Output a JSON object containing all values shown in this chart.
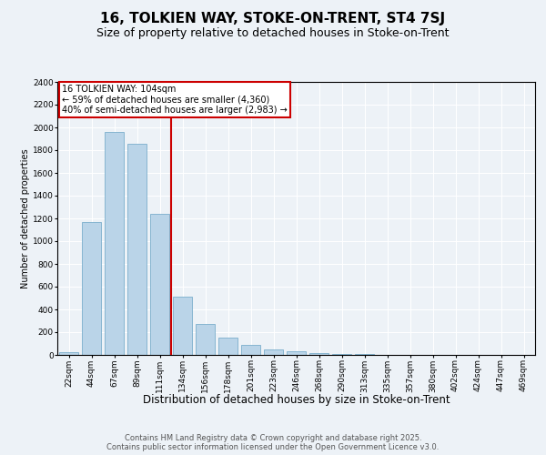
{
  "title": "16, TOLKIEN WAY, STOKE-ON-TRENT, ST4 7SJ",
  "subtitle": "Size of property relative to detached houses in Stoke-on-Trent",
  "xlabel": "Distribution of detached houses by size in Stoke-on-Trent",
  "ylabel": "Number of detached properties",
  "categories": [
    "22sqm",
    "44sqm",
    "67sqm",
    "89sqm",
    "111sqm",
    "134sqm",
    "156sqm",
    "178sqm",
    "201sqm",
    "223sqm",
    "246sqm",
    "268sqm",
    "290sqm",
    "313sqm",
    "335sqm",
    "357sqm",
    "380sqm",
    "402sqm",
    "424sqm",
    "447sqm",
    "469sqm"
  ],
  "values": [
    25,
    1170,
    1960,
    1860,
    1240,
    510,
    275,
    155,
    88,
    45,
    35,
    18,
    8,
    5,
    3,
    2,
    2,
    2,
    2,
    2,
    2
  ],
  "bar_color": "#bad4e8",
  "bar_edge_color": "#7aaecc",
  "vline_color": "#cc0000",
  "vline_x": 4.5,
  "annotation_text": "16 TOLKIEN WAY: 104sqm\n← 59% of detached houses are smaller (4,360)\n40% of semi-detached houses are larger (2,983) →",
  "annotation_box_color": "#ffffff",
  "annotation_box_edge_color": "#cc0000",
  "ylim_max": 2400,
  "yticks": [
    0,
    200,
    400,
    600,
    800,
    1000,
    1200,
    1400,
    1600,
    1800,
    2000,
    2200,
    2400
  ],
  "background_color": "#edf2f7",
  "grid_color": "#ffffff",
  "footer": "Contains HM Land Registry data © Crown copyright and database right 2025.\nContains public sector information licensed under the Open Government Licence v3.0.",
  "title_fontsize": 11,
  "subtitle_fontsize": 9,
  "xlabel_fontsize": 8.5,
  "ylabel_fontsize": 7,
  "tick_fontsize": 6.5,
  "footer_fontsize": 6,
  "annot_fontsize": 7
}
